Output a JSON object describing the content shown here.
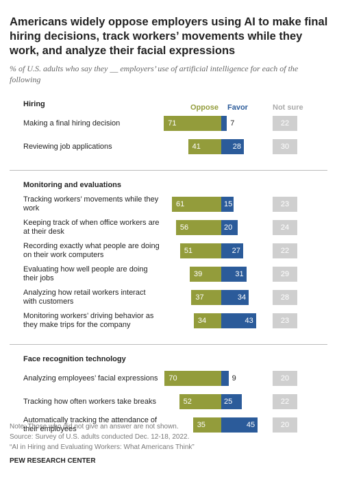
{
  "chart_data": {
    "type": "diverging_bar",
    "title": "Americans widely oppose employers using AI to make final hiring decisions, track workers’ movements while they work, and analyze their facial expressions",
    "subtitle": "% of U.S. adults who say they __ employers’ use of artificial intelligence for each of the following",
    "groups": [
      {
        "name": "Hiring",
        "categories": [
          "Making a final hiring decision",
          "Reviewing job applications"
        ]
      },
      {
        "name": "Monitoring and evaluations",
        "categories": [
          "Tracking workers’ movements while they work",
          "Keeping track of when office workers are at their desk",
          "Recording exactly what people are doing on their work computers",
          "Evaluating how well people are doing their jobs",
          "Analyzing how retail workers interact with customers",
          "Monitoring workers’ driving behavior as they make trips for the company"
        ]
      },
      {
        "name": "Face recognition technology",
        "categories": [
          "Analyzing employees’ facial expressions",
          "Tracking how often workers take breaks",
          "Automatically tracking the attendance of their employees"
        ]
      }
    ],
    "series": [
      {
        "name": "Oppose",
        "color": "#939c3b",
        "values": [
          71,
          41,
          61,
          56,
          51,
          39,
          37,
          34,
          70,
          52,
          35
        ]
      },
      {
        "name": "Favor",
        "color": "#2b5b9a",
        "values": [
          7,
          28,
          15,
          20,
          27,
          31,
          34,
          43,
          9,
          25,
          45
        ]
      },
      {
        "name": "Not sure",
        "color": "#cfcfcf",
        "values": [
          22,
          30,
          23,
          24,
          22,
          29,
          28,
          23,
          20,
          22,
          20
        ]
      }
    ],
    "note": "Note: Those who did not give an answer are not shown.",
    "source": "Source: Survey of U.S. adults conducted Dec. 12-18, 2022.",
    "report": "“AI in Hiring and Evaluating Workers: What Americans Think”",
    "credit": "PEW RESEARCH CENTER"
  }
}
